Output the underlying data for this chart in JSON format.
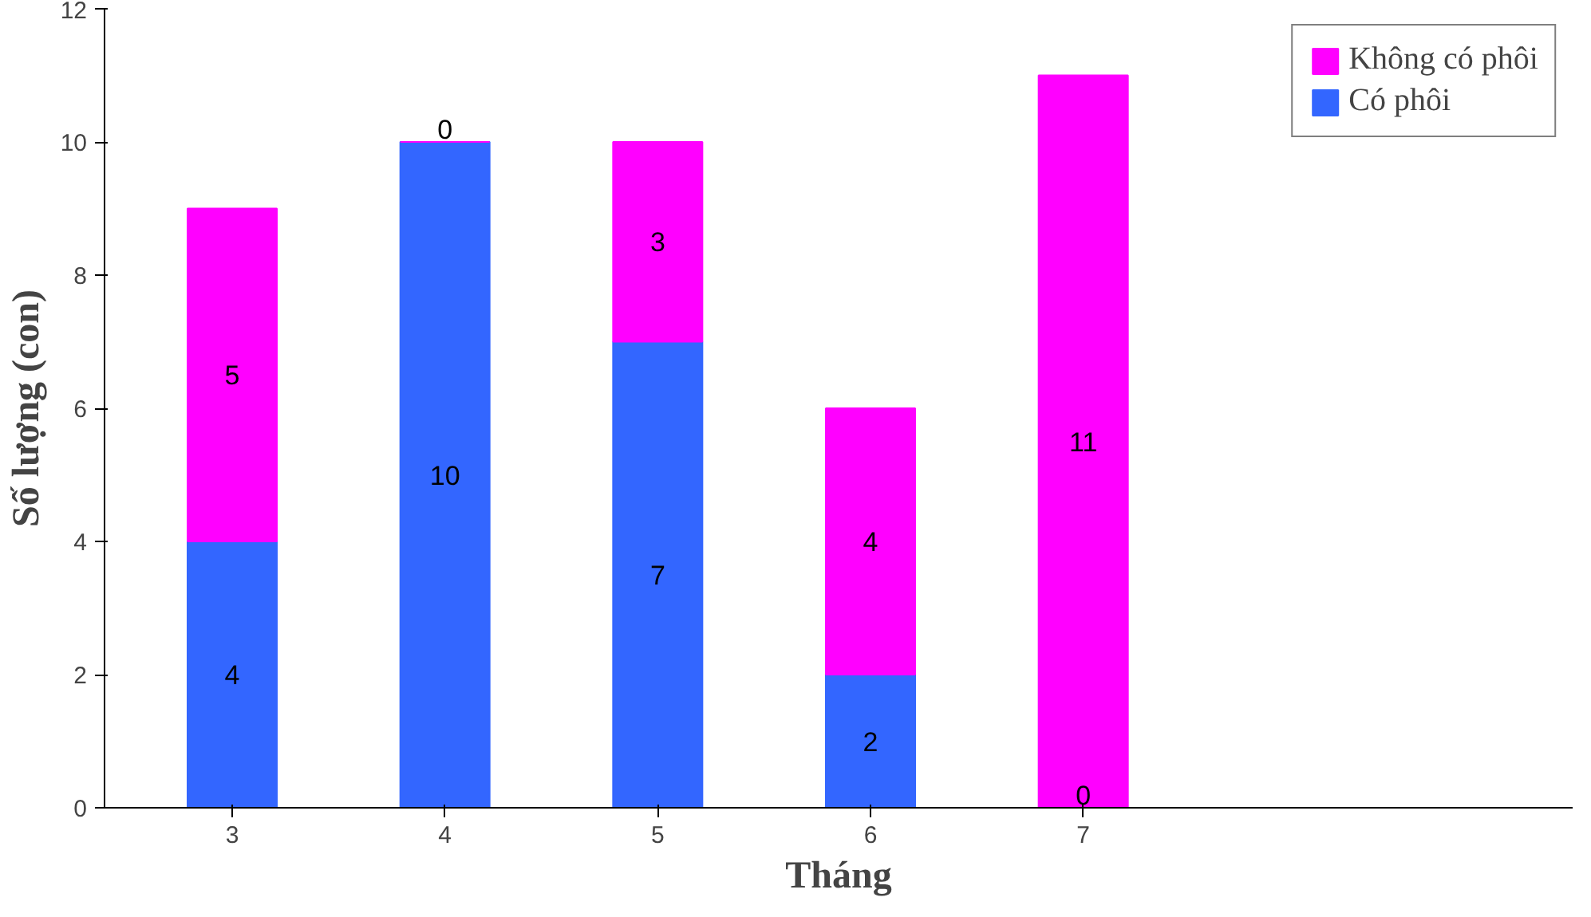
{
  "chart_data": {
    "type": "bar",
    "stacked": true,
    "xlabel": "Tháng",
    "ylabel": "Số lượng (con)",
    "categories": [
      "3",
      "4",
      "5",
      "6",
      "7"
    ],
    "series": [
      {
        "name": "Có phôi",
        "color": "#3366ff",
        "values": [
          4,
          10,
          7,
          2,
          0
        ]
      },
      {
        "name": "Không có phôi",
        "color": "#ff00ff",
        "values": [
          5,
          0,
          3,
          4,
          11
        ]
      }
    ],
    "ylim": [
      0,
      12
    ],
    "yticks": [
      0,
      2,
      4,
      6,
      8,
      10,
      12
    ],
    "data_labels": true,
    "grid": false,
    "legend": "top right"
  }
}
